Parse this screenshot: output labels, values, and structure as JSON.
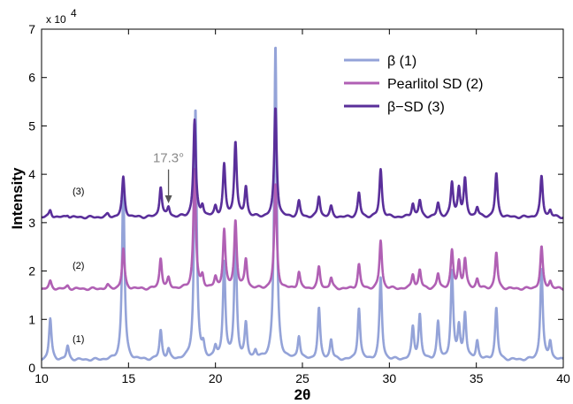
{
  "chart_data": {
    "type": "line",
    "xlabel": "2θ",
    "ylabel": "Intensity",
    "xlim": [
      10,
      40
    ],
    "ylim": [
      0,
      70000
    ],
    "y_multiplier_label": "x 10",
    "y_multiplier_exponent": "4",
    "x_ticks": [
      10,
      15,
      20,
      25,
      30,
      35,
      40
    ],
    "x_tick_labels": [
      "10",
      "15",
      "20",
      "25",
      "30",
      "35",
      "40"
    ],
    "y_ticks": [
      0,
      10000,
      20000,
      30000,
      40000,
      50000,
      60000,
      70000
    ],
    "y_tick_labels": [
      "0",
      "1",
      "2",
      "3",
      "4",
      "5",
      "6",
      "7"
    ],
    "grid": false,
    "legend_position": "top-right",
    "series": [
      {
        "name": "β   (1)",
        "tag": "(1)",
        "color": "#94a3d8",
        "baseline": 1600,
        "peaks": [
          [
            10.5,
            8500
          ],
          [
            11.5,
            2800
          ],
          [
            14.7,
            36800.0
          ],
          [
            16.85,
            6000
          ],
          [
            17.3,
            1900
          ],
          [
            18.85,
            52000.0
          ],
          [
            19.3,
            2300
          ],
          [
            20.0,
            2200
          ],
          [
            20.5,
            20000.0
          ],
          [
            21.15,
            25500.0
          ],
          [
            21.75,
            7000
          ],
          [
            22.3,
            1600
          ],
          [
            23.45,
            65200.0
          ],
          [
            24.8,
            4800
          ],
          [
            25.95,
            10500.0
          ],
          [
            26.65,
            4100
          ],
          [
            28.25,
            10800.0
          ],
          [
            29.5,
            16800.0
          ],
          [
            31.35,
            6500
          ],
          [
            31.75,
            9200
          ],
          [
            32.8,
            7600
          ],
          [
            33.6,
            18000.0
          ],
          [
            34.0,
            6500
          ],
          [
            34.35,
            9500
          ],
          [
            35.05,
            3900
          ],
          [
            36.15,
            10700.0
          ],
          [
            38.75,
            19000.0
          ],
          [
            39.25,
            3800
          ]
        ]
      },
      {
        "name": "Pearlitol SD   (2)",
        "tag": "(2)",
        "color": "#b060b4",
        "baseline": 16300,
        "peaks": [
          [
            10.5,
            1500
          ],
          [
            11.5,
            600
          ],
          [
            13.8,
            700
          ],
          [
            14.7,
            8200
          ],
          [
            16.85,
            6300
          ],
          [
            17.3,
            2000
          ],
          [
            18.8,
            24600.0
          ],
          [
            19.25,
            2400
          ],
          [
            20.0,
            2100
          ],
          [
            20.5,
            12000.0
          ],
          [
            21.15,
            14000.0
          ],
          [
            21.75,
            6000
          ],
          [
            23.45,
            21600.0
          ],
          [
            24.8,
            3400
          ],
          [
            25.95,
            4400
          ],
          [
            26.65,
            2200
          ],
          [
            28.25,
            5000
          ],
          [
            29.5,
            10000.0
          ],
          [
            31.35,
            3000
          ],
          [
            31.75,
            3800
          ],
          [
            32.8,
            3000
          ],
          [
            33.6,
            7600
          ],
          [
            34.0,
            5400
          ],
          [
            34.35,
            6000
          ],
          [
            35.05,
            2000
          ],
          [
            36.15,
            7500
          ],
          [
            38.75,
            8600
          ],
          [
            39.25,
            1500
          ]
        ]
      },
      {
        "name": "β−SD   (3)",
        "tag": "(3)",
        "color": "#5a2f9a",
        "baseline": 31100,
        "peaks": [
          [
            10.5,
            1500
          ],
          [
            11.5,
            500
          ],
          [
            13.8,
            600
          ],
          [
            14.7,
            8200
          ],
          [
            16.85,
            6300
          ],
          [
            17.3,
            2000
          ],
          [
            18.8,
            20000.0
          ],
          [
            19.25,
            2300
          ],
          [
            20.0,
            2000
          ],
          [
            20.5,
            10600.0
          ],
          [
            21.15,
            15600.0
          ],
          [
            21.75,
            6200
          ],
          [
            23.45,
            22800.0
          ],
          [
            24.8,
            3200
          ],
          [
            25.95,
            4300
          ],
          [
            26.65,
            2100
          ],
          [
            28.25,
            5000
          ],
          [
            29.5,
            9900
          ],
          [
            31.35,
            2800
          ],
          [
            31.75,
            3400
          ],
          [
            32.8,
            2800
          ],
          [
            33.6,
            7000
          ],
          [
            34.0,
            5900
          ],
          [
            34.35,
            7600
          ],
          [
            35.05,
            2000
          ],
          [
            36.15,
            9000
          ],
          [
            38.75,
            8400
          ],
          [
            39.25,
            1400
          ]
        ]
      }
    ],
    "annotations": [
      {
        "text": "17.3°",
        "x": 17.3,
        "arrow_from_y": 41000,
        "arrow_to_y": 34000
      }
    ]
  }
}
